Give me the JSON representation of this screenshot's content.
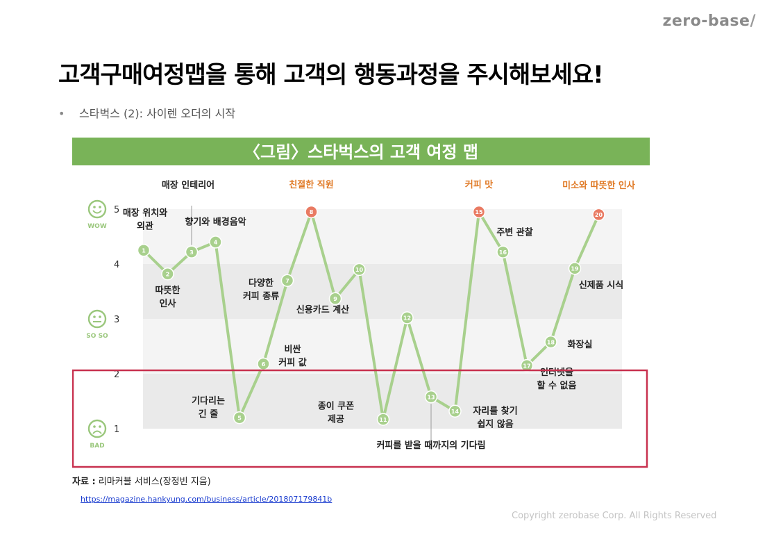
{
  "header": {
    "logo_text": "zero-base",
    "logo_slash": "/",
    "title": "고객구매여정맵을 통해 고객의 행동과정을 주시해보세요!",
    "bullet": "•",
    "subtitle": "스타벅스 (2): 사이렌 오더의 시작"
  },
  "chart_data": {
    "type": "line",
    "title": "〈그림〉스타벅스의 고객 여정 맵",
    "ylim": [
      0.5,
      5.5
    ],
    "y_ticks": [
      "1",
      "2",
      "3",
      "4",
      "5"
    ],
    "y_levels": [
      {
        "label": "WOW",
        "value": 5
      },
      {
        "label": "SO SO",
        "value": 3
      },
      {
        "label": "BAD",
        "value": 1
      }
    ],
    "series": [
      {
        "values": [
          {
            "n": 1,
            "y": 4.25,
            "label": "매장 위치와|외관"
          },
          {
            "n": 2,
            "y": 3.82,
            "label": "따뜻한|인사"
          },
          {
            "n": 3,
            "y": 4.22,
            "label": "매장 인테리어"
          },
          {
            "n": 4,
            "y": 4.4,
            "label": "향기와 배경음악"
          },
          {
            "n": 5,
            "y": 1.2,
            "label": "기다리는|긴 줄"
          },
          {
            "n": 6,
            "y": 2.18,
            "label": "비싼|커피 값"
          },
          {
            "n": 7,
            "y": 3.7,
            "label": "다양한|커피 종류"
          },
          {
            "n": 8,
            "y": 4.95,
            "label": "친절한 직원",
            "highlight": true
          },
          {
            "n": 9,
            "y": 3.37,
            "label": "신용카드 계산"
          },
          {
            "n": 10,
            "y": 3.9,
            "label": ""
          },
          {
            "n": 11,
            "y": 1.17,
            "label": "종이 쿠폰|제공"
          },
          {
            "n": 12,
            "y": 3.02,
            "label": ""
          },
          {
            "n": 13,
            "y": 1.58,
            "label": "커피를 받을 때까지의 기다림"
          },
          {
            "n": 14,
            "y": 1.32,
            "label": "자리를 찾기|쉽지 않음"
          },
          {
            "n": 15,
            "y": 4.95,
            "label": "커피 맛",
            "highlight": true
          },
          {
            "n": 16,
            "y": 4.22,
            "label": "주변 관찰"
          },
          {
            "n": 17,
            "y": 2.15,
            "label": "인터넷을|할 수 없음"
          },
          {
            "n": 18,
            "y": 2.58,
            "label": "화장실"
          },
          {
            "n": 19,
            "y": 3.92,
            "label": "신제품 시식"
          },
          {
            "n": 20,
            "y": 4.9,
            "label": "미소와 따뜻한 인사",
            "highlight": true
          }
        ]
      }
    ],
    "colors": {
      "title_bar": "#79b358",
      "line": "#a8d08d",
      "marker": "#a8d08d",
      "highlight_marker": "#e97a62",
      "highlight_text": "#e07a26",
      "bad_box": "#c8314f",
      "band_light": "#f4f4f4",
      "band_dark": "#eaeaea",
      "face": "#9ac77c"
    }
  },
  "footer": {
    "source_label": "자료 :",
    "source_text": "리마커블 서비스(장정빈 지음)",
    "link": "https://magazine.hankyung.com/business/article/201807179841b",
    "copyright": "Copyright zerobase Corp. All Rights Reserved"
  }
}
